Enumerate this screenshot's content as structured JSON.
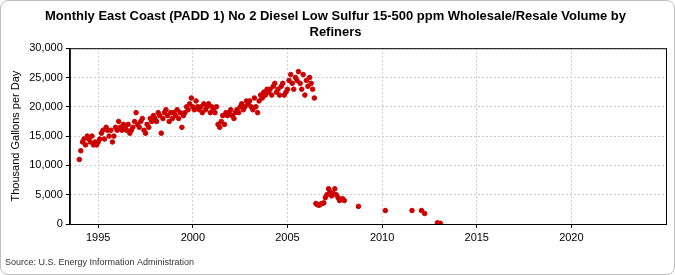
{
  "chart_data": {
    "type": "scatter",
    "title": [
      "Monthly East Coast (PADD 1) No 2 Diesel Low Sulfur 15-500 ppm Wholesale/Resale Volume by",
      "Refiners"
    ],
    "y_label": "Thousand Gallons per Day",
    "source": "Source: U.S. Energy Information Administration",
    "color": "#cc0000",
    "marker": "circle",
    "grid": true,
    "x": [
      1994.0,
      1994.08,
      1994.17,
      1994.25,
      1994.33,
      1994.42,
      1994.5,
      1994.58,
      1994.67,
      1994.75,
      1994.83,
      1994.92,
      1995.0,
      1995.08,
      1995.17,
      1995.25,
      1995.33,
      1995.42,
      1995.5,
      1995.58,
      1995.67,
      1995.75,
      1995.83,
      1995.92,
      1996.0,
      1996.08,
      1996.17,
      1996.25,
      1996.33,
      1996.42,
      1996.5,
      1996.58,
      1996.67,
      1996.75,
      1996.83,
      1996.92,
      1997.0,
      1997.08,
      1997.17,
      1997.25,
      1997.33,
      1997.42,
      1997.5,
      1997.58,
      1997.67,
      1997.75,
      1997.83,
      1997.92,
      1998.0,
      1998.08,
      1998.17,
      1998.25,
      1998.33,
      1998.42,
      1998.5,
      1998.58,
      1998.67,
      1998.75,
      1998.83,
      1998.92,
      1999.0,
      1999.08,
      1999.17,
      1999.25,
      1999.33,
      1999.42,
      1999.5,
      1999.58,
      1999.67,
      1999.75,
      1999.83,
      1999.92,
      2000.0,
      2000.08,
      2000.17,
      2000.25,
      2000.33,
      2000.42,
      2000.5,
      2000.58,
      2000.67,
      2000.75,
      2000.83,
      2000.92,
      2001.0,
      2001.08,
      2001.17,
      2001.25,
      2001.33,
      2001.42,
      2001.5,
      2001.58,
      2001.67,
      2001.75,
      2001.83,
      2001.92,
      2002.0,
      2002.08,
      2002.17,
      2002.25,
      2002.33,
      2002.42,
      2002.5,
      2002.58,
      2002.67,
      2002.75,
      2002.83,
      2002.92,
      2003.0,
      2003.08,
      2003.17,
      2003.25,
      2003.33,
      2003.42,
      2003.5,
      2003.58,
      2003.67,
      2003.75,
      2003.83,
      2003.92,
      2004.0,
      2004.08,
      2004.17,
      2004.25,
      2004.33,
      2004.42,
      2004.5,
      2004.58,
      2004.67,
      2004.75,
      2004.83,
      2004.92,
      2005.0,
      2005.08,
      2005.17,
      2005.25,
      2005.33,
      2005.42,
      2005.5,
      2005.58,
      2005.67,
      2005.75,
      2005.83,
      2005.92,
      2006.0,
      2006.08,
      2006.17,
      2006.25,
      2006.33,
      2006.42,
      2006.5,
      2006.58,
      2006.67,
      2006.75,
      2006.83,
      2006.92,
      2007.0,
      2007.08,
      2007.17,
      2007.25,
      2007.33,
      2007.42,
      2007.5,
      2007.58,
      2007.67,
      2007.75,
      2007.83,
      2007.92,
      2008.0,
      2008.75,
      2010.17,
      2011.58,
      2012.08,
      2012.25,
      2012.92,
      2013.0,
      2013.08
    ],
    "values": [
      11000,
      12500,
      14000,
      14500,
      13500,
      15000,
      14500,
      14000,
      15000,
      13500,
      14000,
      13500,
      14000,
      14500,
      15500,
      16000,
      14500,
      16500,
      16000,
      15000,
      16000,
      14000,
      15000,
      16500,
      16000,
      17500,
      16500,
      16000,
      17000,
      16500,
      16000,
      17000,
      15500,
      16000,
      16500,
      17500,
      19000,
      17000,
      16500,
      17500,
      18000,
      16000,
      15500,
      17000,
      16500,
      18000,
      17500,
      18500,
      18000,
      17500,
      19000,
      18500,
      15500,
      18000,
      19000,
      19500,
      18500,
      17500,
      19000,
      18000,
      19000,
      18500,
      19500,
      18000,
      19000,
      16500,
      18500,
      19000,
      20000,
      19500,
      20500,
      21500,
      20000,
      19500,
      21000,
      20000,
      19500,
      20000,
      19000,
      20500,
      19500,
      20000,
      20500,
      19000,
      20000,
      19500,
      19000,
      20000,
      17000,
      16500,
      17500,
      18500,
      17000,
      19000,
      18500,
      19000,
      19500,
      18500,
      18000,
      19000,
      19500,
      19000,
      20000,
      20500,
      19500,
      20000,
      21000,
      20500,
      21000,
      20000,
      19500,
      21500,
      20000,
      19000,
      21000,
      22000,
      21500,
      22500,
      22000,
      23000,
      22500,
      23000,
      22000,
      23500,
      24000,
      22500,
      23000,
      22000,
      23500,
      24000,
      22000,
      22500,
      23000,
      24500,
      25500,
      24000,
      23000,
      25000,
      24500,
      26000,
      24000,
      23000,
      25500,
      22000,
      24500,
      23500,
      25000,
      24000,
      23000,
      21500,
      3500,
      3300,
      3200,
      3400,
      3500,
      3600,
      4500,
      5000,
      6000,
      5500,
      4800,
      5200,
      6000,
      5000,
      4500,
      4000,
      4200,
      4300,
      4000,
      3000,
      2300,
      2300,
      2300,
      1800,
      200,
      100,
      100
    ],
    "xlim": [
      1993.5,
      2025
    ],
    "xticks": [
      1995,
      2000,
      2005,
      2010,
      2015,
      2020
    ],
    "ylim": [
      0,
      30000
    ],
    "yticks": [
      0,
      {
        "value": 5000,
        "label": "5,000"
      },
      {
        "value": 10000,
        "label": "10,000"
      },
      {
        "value": 15000,
        "label": "15,000"
      },
      {
        "value": 20000,
        "label": "20,000"
      },
      {
        "value": 25000,
        "label": "25,000"
      },
      {
        "value": 30000,
        "label": "30,000"
      }
    ]
  }
}
